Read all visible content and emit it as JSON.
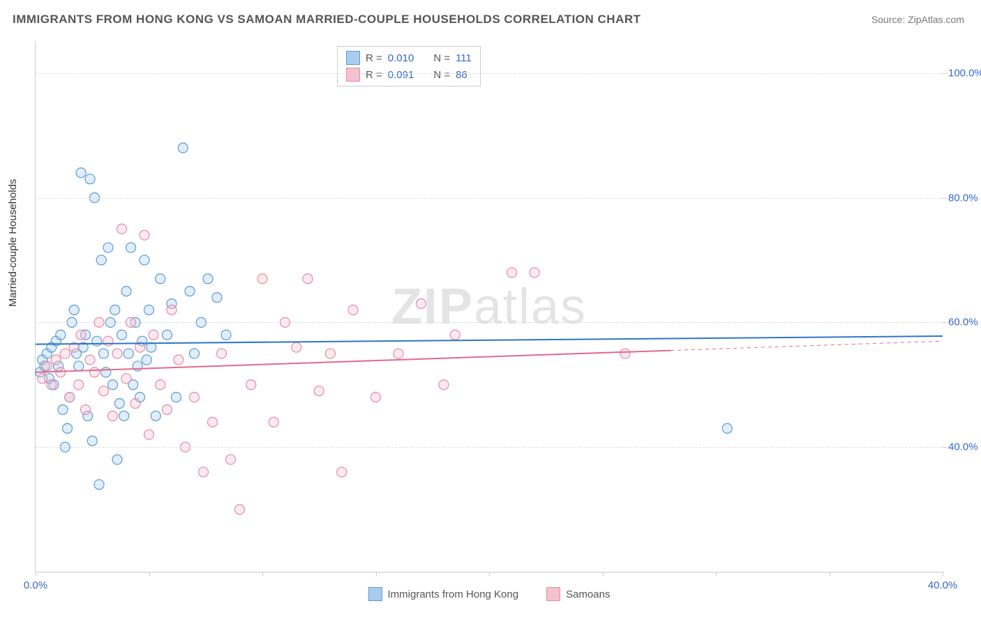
{
  "title": "IMMIGRANTS FROM HONG KONG VS SAMOAN MARRIED-COUPLE HOUSEHOLDS CORRELATION CHART",
  "source": "Source: ZipAtlas.com",
  "watermark_bold": "ZIP",
  "watermark_rest": "atlas",
  "ylabel": "Married-couple Households",
  "chart": {
    "type": "scatter",
    "xlim": [
      0,
      40
    ],
    "ylim": [
      20,
      105
    ],
    "x_ticks": [
      0,
      5,
      10,
      15,
      20,
      25,
      30,
      35,
      40
    ],
    "x_tick_labels": {
      "0": "0.0%",
      "40": "40.0%"
    },
    "y_ticks": [
      40,
      60,
      80,
      100
    ],
    "y_tick_labels": {
      "40": "40.0%",
      "60": "60.0%",
      "80": "80.0%",
      "100": "100.0%"
    },
    "grid_color": "#dddddd",
    "background_color": "#ffffff",
    "axis_color": "#cccccc",
    "tick_label_color": "#3366cc",
    "marker_radius": 7,
    "marker_stroke_width": 1.2,
    "marker_fill_opacity": 0.35,
    "line_width": 2,
    "series": [
      {
        "name": "Immigrants from Hong Kong",
        "color_fill": "#a9cced",
        "color_stroke": "#5a9bd5",
        "line_color": "#2e75c6",
        "R": "0.010",
        "N": "111",
        "trend": {
          "x1": 0,
          "y1": 56.5,
          "x2": 40,
          "y2": 57.8
        },
        "points": [
          [
            0.2,
            52
          ],
          [
            0.3,
            54
          ],
          [
            0.4,
            53
          ],
          [
            0.5,
            55
          ],
          [
            0.6,
            51
          ],
          [
            0.7,
            56
          ],
          [
            0.8,
            50
          ],
          [
            0.9,
            57
          ],
          [
            1.0,
            53
          ],
          [
            1.1,
            58
          ],
          [
            1.2,
            46
          ],
          [
            1.3,
            40
          ],
          [
            1.4,
            43
          ],
          [
            1.5,
            48
          ],
          [
            1.6,
            60
          ],
          [
            1.7,
            62
          ],
          [
            1.8,
            55
          ],
          [
            1.9,
            53
          ],
          [
            2.0,
            84
          ],
          [
            2.1,
            56
          ],
          [
            2.2,
            58
          ],
          [
            2.3,
            45
          ],
          [
            2.4,
            83
          ],
          [
            2.5,
            41
          ],
          [
            2.6,
            80
          ],
          [
            2.7,
            57
          ],
          [
            2.8,
            34
          ],
          [
            2.9,
            70
          ],
          [
            3.0,
            55
          ],
          [
            3.1,
            52
          ],
          [
            3.2,
            72
          ],
          [
            3.3,
            60
          ],
          [
            3.4,
            50
          ],
          [
            3.5,
            62
          ],
          [
            3.6,
            38
          ],
          [
            3.7,
            47
          ],
          [
            3.8,
            58
          ],
          [
            3.9,
            45
          ],
          [
            4.0,
            65
          ],
          [
            4.1,
            55
          ],
          [
            4.2,
            72
          ],
          [
            4.3,
            50
          ],
          [
            4.4,
            60
          ],
          [
            4.5,
            53
          ],
          [
            4.6,
            48
          ],
          [
            4.7,
            57
          ],
          [
            4.8,
            70
          ],
          [
            4.9,
            54
          ],
          [
            5.0,
            62
          ],
          [
            5.1,
            56
          ],
          [
            5.3,
            45
          ],
          [
            5.5,
            67
          ],
          [
            5.8,
            58
          ],
          [
            6.0,
            63
          ],
          [
            6.2,
            48
          ],
          [
            6.5,
            88
          ],
          [
            6.8,
            65
          ],
          [
            7.0,
            55
          ],
          [
            7.3,
            60
          ],
          [
            7.6,
            67
          ],
          [
            8.0,
            64
          ],
          [
            8.4,
            58
          ],
          [
            30.5,
            43
          ]
        ]
      },
      {
        "name": "Samoans",
        "color_fill": "#f4c2cf",
        "color_stroke": "#e58ba5",
        "line_color": "#e06a8c",
        "R": "0.091",
        "N": "86",
        "trend": {
          "x1": 0,
          "y1": 52.0,
          "x2": 28,
          "y2": 55.5
        },
        "trend_dash": {
          "x1": 28,
          "y1": 55.5,
          "x2": 40,
          "y2": 57.0
        },
        "points": [
          [
            0.3,
            51
          ],
          [
            0.5,
            53
          ],
          [
            0.7,
            50
          ],
          [
            0.9,
            54
          ],
          [
            1.1,
            52
          ],
          [
            1.3,
            55
          ],
          [
            1.5,
            48
          ],
          [
            1.7,
            56
          ],
          [
            1.9,
            50
          ],
          [
            2.0,
            58
          ],
          [
            2.2,
            46
          ],
          [
            2.4,
            54
          ],
          [
            2.6,
            52
          ],
          [
            2.8,
            60
          ],
          [
            3.0,
            49
          ],
          [
            3.2,
            57
          ],
          [
            3.4,
            45
          ],
          [
            3.6,
            55
          ],
          [
            3.8,
            75
          ],
          [
            4.0,
            51
          ],
          [
            4.2,
            60
          ],
          [
            4.4,
            47
          ],
          [
            4.6,
            56
          ],
          [
            4.8,
            74
          ],
          [
            5.0,
            42
          ],
          [
            5.2,
            58
          ],
          [
            5.5,
            50
          ],
          [
            5.8,
            46
          ],
          [
            6.0,
            62
          ],
          [
            6.3,
            54
          ],
          [
            6.6,
            40
          ],
          [
            7.0,
            48
          ],
          [
            7.4,
            36
          ],
          [
            7.8,
            44
          ],
          [
            8.2,
            55
          ],
          [
            8.6,
            38
          ],
          [
            9.0,
            30
          ],
          [
            9.5,
            50
          ],
          [
            10.0,
            67
          ],
          [
            10.5,
            44
          ],
          [
            11.0,
            60
          ],
          [
            11.5,
            56
          ],
          [
            12.0,
            67
          ],
          [
            12.5,
            49
          ],
          [
            13.0,
            55
          ],
          [
            13.5,
            36
          ],
          [
            14.0,
            62
          ],
          [
            15.0,
            48
          ],
          [
            16.0,
            55
          ],
          [
            17.0,
            63
          ],
          [
            18.0,
            50
          ],
          [
            18.5,
            58
          ],
          [
            21.0,
            68
          ],
          [
            22.0,
            68
          ],
          [
            26.0,
            55
          ]
        ]
      }
    ]
  },
  "legend_top_labels": {
    "R": "R =",
    "N": "N ="
  },
  "legend_bottom": [
    {
      "label": "Immigrants from Hong Kong",
      "fill": "#a9cced",
      "stroke": "#5a9bd5"
    },
    {
      "label": "Samoans",
      "fill": "#f4c2cf",
      "stroke": "#e58ba5"
    }
  ]
}
